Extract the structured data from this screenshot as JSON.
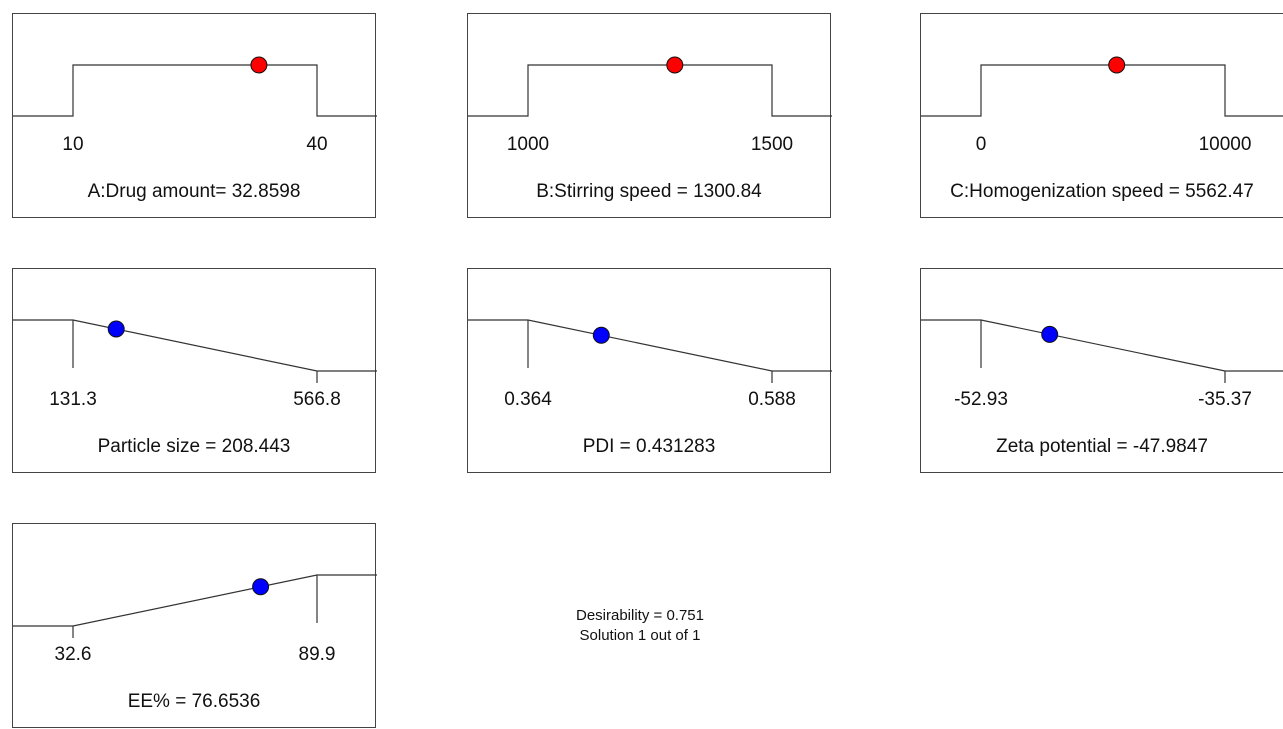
{
  "chart_data": {
    "type": "desirability-ramp",
    "panels": [
      {
        "id": "A",
        "caption": "A:Drug amount= 32.8598",
        "low": 10,
        "high": 40,
        "low_label": "10",
        "high_label": "40",
        "value": 32.8598,
        "shape": "range",
        "marker": "factor"
      },
      {
        "id": "B",
        "caption": "B:Stirring speed = 1300.84",
        "low": 1000,
        "high": 1500,
        "low_label": "1000",
        "high_label": "1500",
        "value": 1300.84,
        "shape": "range",
        "marker": "factor"
      },
      {
        "id": "C",
        "caption": "C:Homogenization speed = 5562.47",
        "low": 0,
        "high": 10000,
        "low_label": "0",
        "high_label": "10000",
        "value": 5562.47,
        "shape": "range",
        "marker": "factor"
      },
      {
        "id": "ps",
        "caption": "Particle size = 208.443",
        "low": 131.3,
        "high": 566.8,
        "low_label": "131.3",
        "high_label": "566.8",
        "value": 208.443,
        "shape": "minimize",
        "marker": "response"
      },
      {
        "id": "pdi",
        "caption": "PDI = 0.431283",
        "low": 0.364,
        "high": 0.588,
        "low_label": "0.364",
        "high_label": "0.588",
        "value": 0.431283,
        "shape": "minimize",
        "marker": "response"
      },
      {
        "id": "zeta",
        "caption": "Zeta potential = -47.9847",
        "low": -52.93,
        "high": -35.37,
        "low_label": "-52.93",
        "high_label": "-35.37",
        "value": -47.9847,
        "shape": "minimize",
        "marker": "response"
      },
      {
        "id": "ee",
        "caption": "EE% = 76.6536",
        "low": 32.6,
        "high": 89.9,
        "low_label": "32.6",
        "high_label": "89.9",
        "value": 76.6536,
        "shape": "maximize",
        "marker": "response"
      }
    ],
    "desirability": "Desirability = 0.751",
    "solution": "Solution 1 out of 1"
  },
  "colors": {
    "factor": "#ff0000",
    "response": "#0000ff",
    "line": "#333333"
  }
}
